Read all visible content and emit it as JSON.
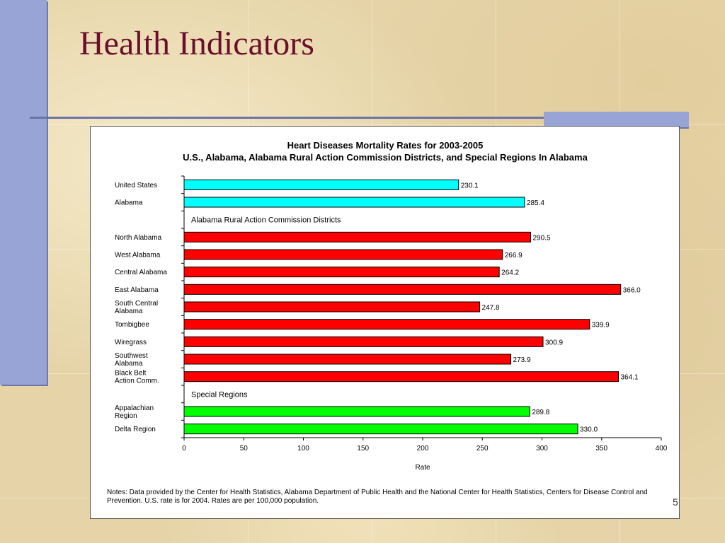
{
  "slide": {
    "title": "Health Indicators",
    "page_number": "5"
  },
  "chart_data": {
    "type": "bar",
    "orientation": "horizontal",
    "title": "Heart Diseases Mortality Rates for 2003-2005",
    "subtitle": "U.S., Alabama, Alabama Rural Action Commission Districts, and Special Regions In Alabama",
    "xlabel": "Rate",
    "ylabel": "",
    "xlim": [
      0,
      400
    ],
    "xticks": [
      0,
      50,
      100,
      150,
      200,
      250,
      300,
      350,
      400
    ],
    "grid": false,
    "groups": [
      {
        "heading": "",
        "color": "#00ffff",
        "items": [
          {
            "label": [
              "United States"
            ],
            "value": 230.1,
            "value_label": "230.1"
          },
          {
            "label": [
              "Alabama"
            ],
            "value": 285.4,
            "value_label": "285.4"
          }
        ]
      },
      {
        "heading": "Alabama Rural Action Commission Districts",
        "color": "#ff0000",
        "items": [
          {
            "label": [
              "North Alabama"
            ],
            "value": 290.5,
            "value_label": "290.5"
          },
          {
            "label": [
              "West Alabama"
            ],
            "value": 266.9,
            "value_label": "266.9"
          },
          {
            "label": [
              "Central Alabama"
            ],
            "value": 264.2,
            "value_label": "264.2"
          },
          {
            "label": [
              "East Alabama"
            ],
            "value": 366.0,
            "value_label": "366.0"
          },
          {
            "label": [
              "South Central",
              "Alabama"
            ],
            "value": 247.8,
            "value_label": "247.8"
          },
          {
            "label": [
              "Tombigbee"
            ],
            "value": 339.9,
            "value_label": "339.9"
          },
          {
            "label": [
              "Wiregrass"
            ],
            "value": 300.9,
            "value_label": "300.9"
          },
          {
            "label": [
              "Southwest",
              "Alabama"
            ],
            "value": 273.9,
            "value_label": "273.9"
          },
          {
            "label": [
              "Black Belt",
              "Action Comm."
            ],
            "value": 364.1,
            "value_label": "364.1"
          }
        ]
      },
      {
        "heading": "Special Regions",
        "color": "#00ff00",
        "items": [
          {
            "label": [
              "Appalachian",
              "Region"
            ],
            "value": 289.8,
            "value_label": "289.8"
          },
          {
            "label": [
              "Delta Region"
            ],
            "value": 330.0,
            "value_label": "330.0"
          }
        ]
      }
    ],
    "notes": "Notes: Data provided by the Center for Health Statistics,  Alabama Department of Public Health and the  National Center for Health Statistics, Centers for Disease Control and Prevention.  U.S. rate is for 2004.  Rates are per 100,000 population."
  }
}
